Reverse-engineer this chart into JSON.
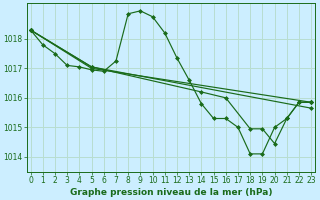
{
  "title": "Graphe pression niveau de la mer (hPa)",
  "bg_color": "#cceeff",
  "line_color": "#1a6b1a",
  "grid_color": "#b8ddd0",
  "xlabel_color": "#1a6b1a",
  "ylim": [
    1013.5,
    1019.2
  ],
  "xlim": [
    -0.3,
    23.3
  ],
  "yticks": [
    1014,
    1015,
    1016,
    1017,
    1018
  ],
  "xticks": [
    0,
    1,
    2,
    3,
    4,
    5,
    6,
    7,
    8,
    9,
    10,
    11,
    12,
    13,
    14,
    15,
    16,
    17,
    18,
    19,
    20,
    21,
    22,
    23
  ],
  "series": [
    {
      "x": [
        0,
        1,
        2,
        3,
        4,
        5,
        6,
        7,
        8,
        9,
        10,
        11,
        12,
        13,
        14,
        15,
        16,
        17,
        18,
        19,
        20,
        21,
        22,
        23
      ],
      "y": [
        1018.3,
        1017.8,
        1017.5,
        1017.1,
        1017.05,
        1016.95,
        1016.9,
        1017.25,
        1018.85,
        1018.95,
        1018.75,
        1018.2,
        1017.35,
        1016.6,
        1015.8,
        1015.3,
        1015.3,
        1015.0,
        1014.1,
        1014.1,
        1015.0,
        1015.3,
        1015.85,
        1015.85
      ]
    },
    {
      "x": [
        0,
        5,
        23
      ],
      "y": [
        1018.3,
        1017.05,
        1015.65
      ]
    },
    {
      "x": [
        0,
        5,
        23
      ],
      "y": [
        1018.3,
        1017.0,
        1015.85
      ]
    },
    {
      "x": [
        0,
        5,
        14,
        16,
        18,
        19,
        20,
        21,
        22,
        23
      ],
      "y": [
        1018.3,
        1017.05,
        1016.2,
        1016.0,
        1014.95,
        1014.95,
        1014.45,
        1015.3,
        1015.85,
        1015.85
      ]
    }
  ]
}
